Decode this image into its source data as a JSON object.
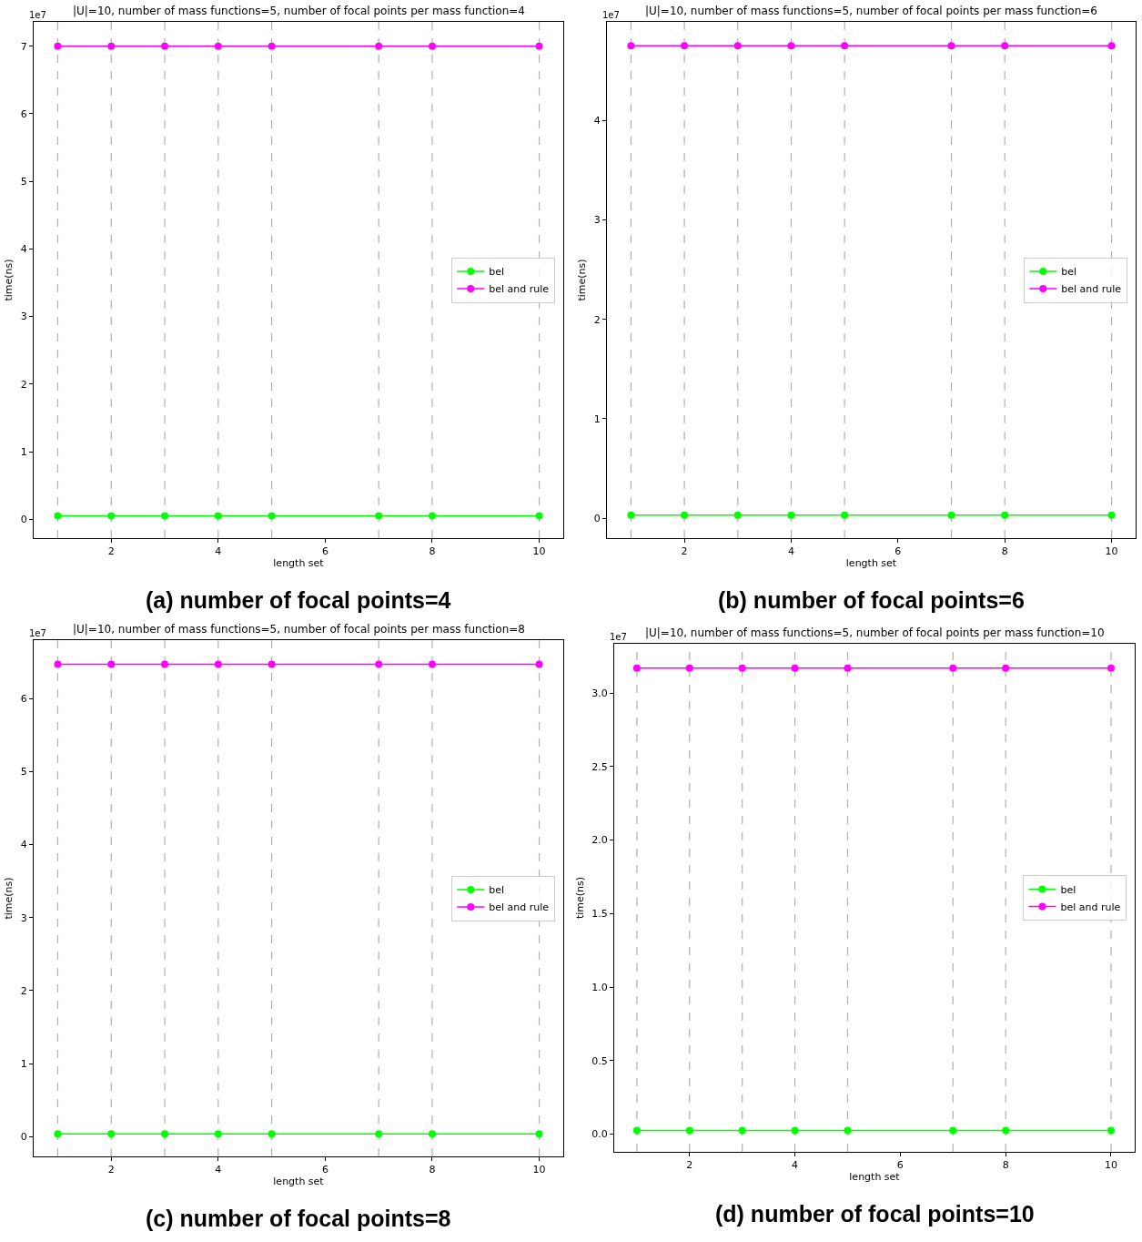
{
  "chart_data": [
    {
      "type": "line",
      "title": "|U|=10, number of mass functions=5, number of focal points per mass function=4",
      "subtitle": "(a) number of focal points=4",
      "xlabel": "length set",
      "ylabel": "time(ns)",
      "annotations": [
        "1e7"
      ],
      "x": [
        1,
        2,
        3,
        4,
        5,
        7,
        8,
        10
      ],
      "series": [
        {
          "name": "bel",
          "color": "#00ff00",
          "values": [
            0.05,
            0.05,
            0.05,
            0.05,
            0.05,
            0.05,
            0.05,
            0.05
          ]
        },
        {
          "name": "bel and rule",
          "color": "#ff00ff",
          "values": [
            7.0,
            7.0,
            7.0,
            7.0,
            7.0,
            7.0,
            7.0,
            7.0
          ]
        }
      ],
      "xlim": [
        0.55,
        10.45
      ],
      "xticks": [
        2,
        4,
        6,
        8,
        10
      ],
      "ylim": [
        -0.28,
        7.36
      ],
      "yticks": [
        0,
        1,
        2,
        3,
        4,
        5,
        6,
        7
      ],
      "ref_lines": [
        {
          "axis": "x",
          "value": 1,
          "color": "#b0b0b0",
          "line_style": "dashed"
        },
        {
          "axis": "x",
          "value": 2,
          "color": "#b0b0b0",
          "line_style": "dashed"
        },
        {
          "axis": "x",
          "value": 3,
          "color": "#b0b0b0",
          "line_style": "dashed"
        },
        {
          "axis": "x",
          "value": 4,
          "color": "#b0b0b0",
          "line_style": "dashed"
        },
        {
          "axis": "x",
          "value": 5,
          "color": "#b0b0b0",
          "line_style": "dashed"
        },
        {
          "axis": "x",
          "value": 7,
          "color": "#b0b0b0",
          "line_style": "dashed"
        },
        {
          "axis": "x",
          "value": 8,
          "color": "#b0b0b0",
          "line_style": "dashed"
        },
        {
          "axis": "x",
          "value": 10,
          "color": "#b0b0b0",
          "line_style": "dashed"
        }
      ],
      "grid": false,
      "legend": "right",
      "marker": "circle",
      "line_style": "solid"
    },
    {
      "type": "line",
      "title": "|U|=10, number of mass functions=5, number of focal points per mass function=6",
      "subtitle": "(b) number of focal points=6",
      "xlabel": "length set",
      "ylabel": "time(ns)",
      "annotations": [
        "1e7"
      ],
      "x": [
        1,
        2,
        3,
        4,
        5,
        7,
        8,
        10
      ],
      "series": [
        {
          "name": "bel",
          "color": "#00ff00",
          "values": [
            0.03,
            0.03,
            0.03,
            0.03,
            0.03,
            0.03,
            0.03,
            0.03
          ]
        },
        {
          "name": "bel and rule",
          "color": "#ff00ff",
          "values": [
            4.75,
            4.75,
            4.75,
            4.75,
            4.75,
            4.75,
            4.75,
            4.75
          ]
        }
      ],
      "xlim": [
        0.55,
        10.45
      ],
      "xticks": [
        2,
        4,
        6,
        8,
        10
      ],
      "ylim": [
        -0.2,
        4.99
      ],
      "yticks": [
        0,
        1,
        2,
        3,
        4
      ],
      "ref_lines": [
        {
          "axis": "x",
          "value": 1,
          "color": "#b0b0b0",
          "line_style": "dashed"
        },
        {
          "axis": "x",
          "value": 2,
          "color": "#b0b0b0",
          "line_style": "dashed"
        },
        {
          "axis": "x",
          "value": 3,
          "color": "#b0b0b0",
          "line_style": "dashed"
        },
        {
          "axis": "x",
          "value": 4,
          "color": "#b0b0b0",
          "line_style": "dashed"
        },
        {
          "axis": "x",
          "value": 5,
          "color": "#b0b0b0",
          "line_style": "dashed"
        },
        {
          "axis": "x",
          "value": 7,
          "color": "#b0b0b0",
          "line_style": "dashed"
        },
        {
          "axis": "x",
          "value": 8,
          "color": "#b0b0b0",
          "line_style": "dashed"
        },
        {
          "axis": "x",
          "value": 10,
          "color": "#b0b0b0",
          "line_style": "dashed"
        }
      ],
      "grid": false,
      "legend": "right",
      "marker": "circle",
      "line_style": "solid"
    },
    {
      "type": "line",
      "title": "|U|=10, number of mass functions=5, number of focal points per mass function=8",
      "subtitle": "(c) number of focal points=8",
      "xlabel": "length set",
      "ylabel": "time(ns)",
      "annotations": [
        "1e7"
      ],
      "x": [
        1,
        2,
        3,
        4,
        5,
        7,
        8,
        10
      ],
      "series": [
        {
          "name": "bel",
          "color": "#00ff00",
          "values": [
            0.04,
            0.04,
            0.04,
            0.04,
            0.04,
            0.04,
            0.04,
            0.04
          ]
        },
        {
          "name": "bel and rule",
          "color": "#ff00ff",
          "values": [
            6.47,
            6.47,
            6.47,
            6.47,
            6.47,
            6.47,
            6.47,
            6.47
          ]
        }
      ],
      "xlim": [
        0.55,
        10.45
      ],
      "xticks": [
        2,
        4,
        6,
        8,
        10
      ],
      "ylim": [
        -0.27,
        6.8
      ],
      "yticks": [
        0,
        1,
        2,
        3,
        4,
        5,
        6
      ],
      "ref_lines": [
        {
          "axis": "x",
          "value": 1,
          "color": "#b0b0b0",
          "line_style": "dashed"
        },
        {
          "axis": "x",
          "value": 2,
          "color": "#b0b0b0",
          "line_style": "dashed"
        },
        {
          "axis": "x",
          "value": 3,
          "color": "#b0b0b0",
          "line_style": "dashed"
        },
        {
          "axis": "x",
          "value": 4,
          "color": "#b0b0b0",
          "line_style": "dashed"
        },
        {
          "axis": "x",
          "value": 5,
          "color": "#b0b0b0",
          "line_style": "dashed"
        },
        {
          "axis": "x",
          "value": 7,
          "color": "#b0b0b0",
          "line_style": "dashed"
        },
        {
          "axis": "x",
          "value": 8,
          "color": "#b0b0b0",
          "line_style": "dashed"
        },
        {
          "axis": "x",
          "value": 10,
          "color": "#b0b0b0",
          "line_style": "dashed"
        }
      ],
      "grid": false,
      "legend": "right",
      "marker": "circle",
      "line_style": "solid"
    },
    {
      "type": "line",
      "title": "|U|=10, number of mass functions=5, number of focal points per mass function=10",
      "subtitle": "(d) number of focal points=10",
      "xlabel": "length set",
      "ylabel": "time(ns)",
      "annotations": [
        "1e7"
      ],
      "x": [
        1,
        2,
        3,
        4,
        5,
        7,
        8,
        10
      ],
      "series": [
        {
          "name": "bel",
          "color": "#00ff00",
          "values": [
            0.025,
            0.025,
            0.025,
            0.025,
            0.025,
            0.025,
            0.025,
            0.025
          ]
        },
        {
          "name": "bel and rule",
          "color": "#ff00ff",
          "values": [
            3.17,
            3.17,
            3.17,
            3.17,
            3.17,
            3.17,
            3.17,
            3.17
          ]
        }
      ],
      "xlim": [
        0.57,
        10.45
      ],
      "xticks": [
        2,
        4,
        6,
        8,
        10
      ],
      "ylim": [
        -0.12,
        3.335
      ],
      "yticks": [
        {
          "value": 0,
          "label": "0.0"
        },
        {
          "value": 0.5,
          "label": "0.5"
        },
        {
          "value": 1,
          "label": "1.0"
        },
        {
          "value": 1.5,
          "label": "1.5"
        },
        {
          "value": 2,
          "label": "2.0"
        },
        {
          "value": 2.5,
          "label": "2.5"
        },
        {
          "value": 3,
          "label": "3.0"
        }
      ],
      "ref_lines": [
        {
          "axis": "x",
          "value": 1,
          "color": "#b0b0b0",
          "line_style": "dashed"
        },
        {
          "axis": "x",
          "value": 2,
          "color": "#b0b0b0",
          "line_style": "dashed"
        },
        {
          "axis": "x",
          "value": 3,
          "color": "#b0b0b0",
          "line_style": "dashed"
        },
        {
          "axis": "x",
          "value": 4,
          "color": "#b0b0b0",
          "line_style": "dashed"
        },
        {
          "axis": "x",
          "value": 5,
          "color": "#b0b0b0",
          "line_style": "dashed"
        },
        {
          "axis": "x",
          "value": 7,
          "color": "#b0b0b0",
          "line_style": "dashed"
        },
        {
          "axis": "x",
          "value": 8,
          "color": "#b0b0b0",
          "line_style": "dashed"
        },
        {
          "axis": "x",
          "value": 10,
          "color": "#b0b0b0",
          "line_style": "dashed"
        }
      ],
      "grid": false,
      "legend": "right",
      "marker": "circle",
      "line_style": "solid"
    }
  ]
}
